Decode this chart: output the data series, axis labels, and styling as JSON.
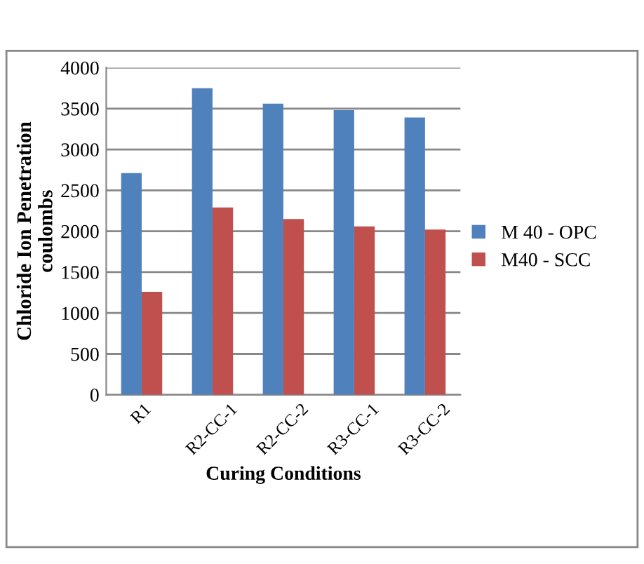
{
  "chart_data": {
    "type": "bar",
    "xlabel": "Curing Conditions",
    "ylabel": "Chloride Ion Penetration\ncoulombs",
    "categories": [
      "R1",
      "R2-CC-1",
      "R2-CC-2",
      "R3-CC-1",
      "R3-CC-2"
    ],
    "series": [
      {
        "name": "M 40 - OPC",
        "color": "#4f81bd",
        "values": [
          2710,
          3750,
          3560,
          3480,
          3390
        ]
      },
      {
        "name": "M40 - SCC",
        "color": "#c0504d",
        "values": [
          1260,
          2290,
          2150,
          2060,
          2020
        ]
      }
    ],
    "ylim": [
      0,
      4000
    ],
    "yticks": [
      0,
      500,
      1000,
      1500,
      2000,
      2500,
      3000,
      3500,
      4000
    ],
    "grid": "y",
    "legend": "right"
  }
}
